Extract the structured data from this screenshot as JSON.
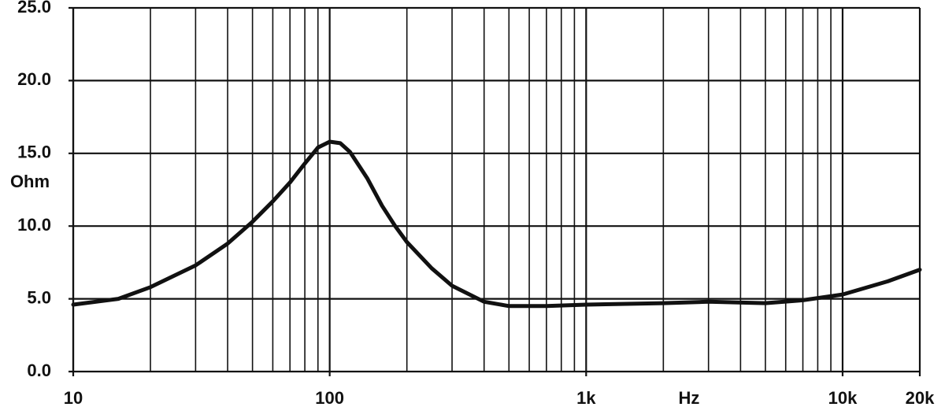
{
  "chart_data": {
    "type": "line",
    "x_label": "Hz",
    "y_label": "Ohm",
    "log_x": true,
    "xlim": [
      10,
      20000
    ],
    "ylim": [
      0,
      25
    ],
    "xticks": [
      10,
      100,
      {
        "value": 1000,
        "label": "1k"
      },
      {
        "value": 10000,
        "label": "10k"
      },
      {
        "value": 20000,
        "label": "20k"
      }
    ],
    "xgrid_minor": [
      20,
      30,
      40,
      50,
      60,
      70,
      80,
      90,
      200,
      300,
      400,
      500,
      600,
      700,
      800,
      900,
      2000,
      3000,
      4000,
      5000,
      6000,
      7000,
      8000,
      9000
    ],
    "yticks": [
      {
        "value": 0,
        "label": "0.0"
      },
      {
        "value": 5,
        "label": "5.0"
      },
      {
        "value": 10,
        "label": "10.0"
      },
      {
        "value": 15,
        "label": "15.0"
      },
      {
        "value": 20,
        "label": "20.0"
      },
      {
        "value": 25,
        "label": "25.0"
      }
    ],
    "grid": true,
    "color": "#111111",
    "x": [
      10,
      15,
      20,
      30,
      40,
      50,
      60,
      70,
      80,
      90,
      100,
      110,
      120,
      140,
      160,
      180,
      200,
      250,
      300,
      400,
      500,
      700,
      1000,
      2000,
      3000,
      5000,
      7000,
      10000,
      15000,
      20000
    ],
    "values": [
      4.6,
      5.0,
      5.8,
      7.3,
      8.8,
      10.3,
      11.7,
      13.0,
      14.3,
      15.4,
      15.8,
      15.7,
      15.1,
      13.3,
      11.4,
      10.0,
      8.9,
      7.1,
      5.9,
      4.8,
      4.5,
      4.5,
      4.6,
      4.7,
      4.8,
      4.7,
      4.9,
      5.3,
      6.2,
      7.0
    ]
  }
}
